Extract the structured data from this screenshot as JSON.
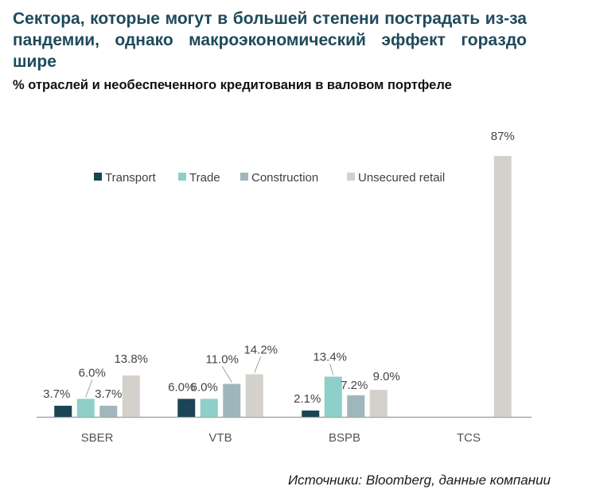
{
  "header": {
    "title": "Сектора, которые могут в большей степени пострадать из-за пандемии, однако макроэкономический эффект гораздо шире",
    "subtitle": "% отраслей и необеспеченного кредитования в валовом портфеле"
  },
  "footer": {
    "source": "Источники: Bloomberg, данные компании"
  },
  "chart_data": {
    "type": "bar",
    "categories": [
      "SBER",
      "VTB",
      "BSPB",
      "TCS"
    ],
    "series": [
      {
        "name": "Transport",
        "color": "#1b4455",
        "values": [
          3.7,
          6.0,
          2.1,
          null
        ],
        "labels": [
          "3.7%",
          "6.0%",
          "2.1%",
          ""
        ]
      },
      {
        "name": "Trade",
        "color": "#8ecfc9",
        "values": [
          6.0,
          6.0,
          13.4,
          null
        ],
        "labels": [
          "6.0%",
          "6.0%",
          "13.4%",
          ""
        ]
      },
      {
        "name": "Construction",
        "color": "#9fb6bd",
        "values": [
          3.7,
          11.0,
          7.2,
          null
        ],
        "labels": [
          "3.7%",
          "11.0%",
          "7.2%",
          ""
        ]
      },
      {
        "name": "Unsecured retail",
        "color": "#d4d0cc",
        "values": [
          13.8,
          14.2,
          9.0,
          87
        ],
        "labels": [
          "13.8%",
          "14.2%",
          "9.0%",
          "87%"
        ]
      }
    ],
    "ylim": [
      0,
      87
    ],
    "grid": false,
    "legend": "top-center"
  }
}
